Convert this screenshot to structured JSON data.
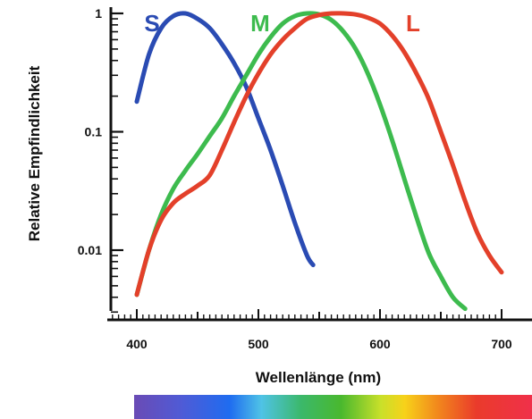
{
  "colors": {
    "S": "#2a4bb3",
    "M": "#3dbb4e",
    "L": "#e3402a"
  },
  "chart_data": {
    "type": "line",
    "xlabel": "Wellenlänge (nm)",
    "ylabel": "Relative Empfindlichkeit",
    "xlim": [
      380,
      700
    ],
    "ylim": [
      0.003,
      1
    ],
    "yscale": "log",
    "x_ticks": [
      400,
      500,
      600,
      700
    ],
    "x_tick_labels": [
      "400",
      "500",
      "600",
      "700"
    ],
    "y_ticks": [
      0.01,
      0.1,
      1
    ],
    "y_tick_labels": [
      "0.01",
      "0.1",
      "1"
    ],
    "grid": false,
    "legend": "labels above curve peaks",
    "spectrum_bar": true,
    "series": [
      {
        "name": "S",
        "x": [
          400,
          410,
          420,
          430,
          440,
          450,
          460,
          470,
          480,
          490,
          500,
          510,
          520,
          530,
          540,
          545
        ],
        "y": [
          0.18,
          0.45,
          0.75,
          0.95,
          1.0,
          0.9,
          0.75,
          0.55,
          0.38,
          0.24,
          0.13,
          0.07,
          0.035,
          0.017,
          0.009,
          0.0075
        ]
      },
      {
        "name": "M",
        "x": [
          400,
          410,
          420,
          430,
          440,
          450,
          460,
          470,
          480,
          490,
          500,
          510,
          520,
          530,
          540,
          550,
          560,
          570,
          580,
          590,
          600,
          610,
          620,
          630,
          640,
          650,
          660,
          670
        ],
        "y": [
          0.0042,
          0.01,
          0.02,
          0.033,
          0.047,
          0.065,
          0.092,
          0.13,
          0.2,
          0.3,
          0.45,
          0.63,
          0.82,
          0.95,
          1.0,
          0.98,
          0.88,
          0.7,
          0.5,
          0.31,
          0.17,
          0.085,
          0.04,
          0.019,
          0.0095,
          0.006,
          0.004,
          0.0032
        ]
      },
      {
        "name": "L",
        "x": [
          400,
          410,
          420,
          430,
          440,
          450,
          460,
          470,
          480,
          490,
          500,
          510,
          520,
          530,
          540,
          550,
          560,
          570,
          580,
          590,
          600,
          610,
          620,
          630,
          640,
          650,
          660,
          670,
          680,
          690,
          700
        ],
        "y": [
          0.0042,
          0.01,
          0.018,
          0.025,
          0.03,
          0.035,
          0.043,
          0.07,
          0.12,
          0.2,
          0.31,
          0.45,
          0.6,
          0.75,
          0.9,
          0.97,
          1.0,
          1.0,
          0.98,
          0.92,
          0.82,
          0.65,
          0.47,
          0.31,
          0.19,
          0.1,
          0.052,
          0.026,
          0.014,
          0.009,
          0.0065
        ]
      }
    ]
  }
}
